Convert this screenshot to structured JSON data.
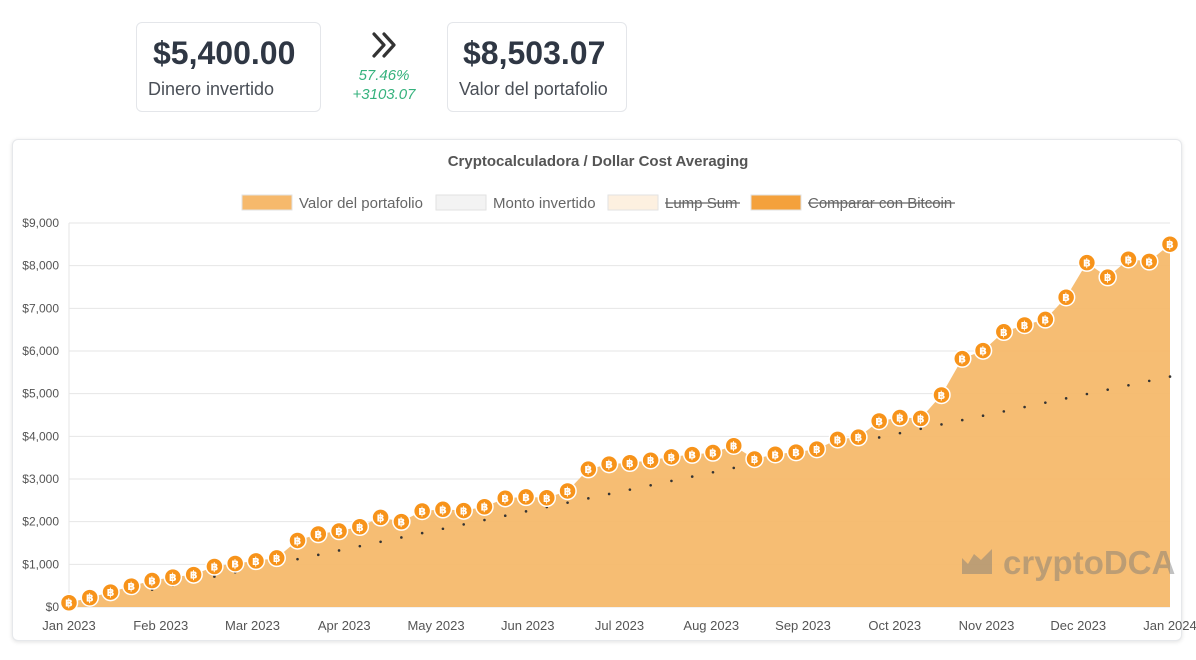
{
  "summary": {
    "invested_value": "$5,400.00",
    "invested_label": "Dinero invertido",
    "gain_percent": "57.46%",
    "gain_amount": "+3103.07",
    "portfolio_value": "$8,503.07",
    "portfolio_label": "Valor del portafolio"
  },
  "watermark": "cryptoDCA",
  "chart_data": {
    "type": "area",
    "title": "Cryptocalculadora / Dollar Cost Averaging",
    "legend": [
      {
        "label": "Valor del portafolio",
        "color": "#f6b96c",
        "hidden": false
      },
      {
        "label": "Monto invertido",
        "color": "#f3f3f3",
        "hidden": false
      },
      {
        "label": "Lump Sum",
        "color": "#fdf0e0",
        "hidden": true
      },
      {
        "label": "Comparar con Bitcoin",
        "color": "#f4a13c",
        "hidden": true
      }
    ],
    "legend_position": "top",
    "ylim": [
      0,
      9000
    ],
    "y_ticks": [
      "$0",
      "$1,000",
      "$2,000",
      "$3,000",
      "$4,000",
      "$5,000",
      "$6,000",
      "$7,000",
      "$8,000",
      "$9,000"
    ],
    "x_ticks": [
      "Jan 2023",
      "Feb 2023",
      "Mar 2023",
      "Apr 2023",
      "May 2023",
      "Jun 2023",
      "Jul 2023",
      "Aug 2023",
      "Sep 2023",
      "Oct 2023",
      "Nov 2023",
      "Dec 2023",
      "Jan 2024"
    ],
    "grid": true,
    "colors": {
      "area": "#f6b96c",
      "marker": "#f7931a",
      "invested_line": "#333333"
    },
    "series": [
      {
        "name": "Valor del portafolio",
        "values": [
          100,
          220,
          350,
          490,
          620,
          700,
          760,
          950,
          1020,
          1080,
          1150,
          1560,
          1710,
          1780,
          1880,
          2100,
          2000,
          2250,
          2290,
          2260,
          2350,
          2550,
          2580,
          2560,
          2720,
          3230,
          3350,
          3380,
          3440,
          3520,
          3570,
          3620,
          3780,
          3470,
          3580,
          3630,
          3700,
          3930,
          3980,
          4360,
          4440,
          4420,
          4970,
          5820,
          6010,
          6450,
          6610,
          6740,
          7260,
          8070,
          7730,
          8150,
          8100,
          8503.07
        ]
      },
      {
        "name": "Monto invertido",
        "start": 0,
        "end": 5400
      }
    ]
  }
}
